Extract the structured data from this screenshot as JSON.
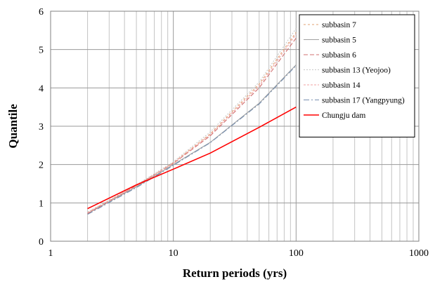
{
  "chart_data": {
    "type": "line",
    "xlabel": "Return periods (yrs)",
    "ylabel": "Quantile",
    "xscale": "log",
    "xlim": [
      1,
      1000
    ],
    "ylim": [
      0,
      6
    ],
    "x_ticks": [
      1,
      10,
      100,
      1000
    ],
    "x_tick_labels": [
      "1",
      "10",
      "100",
      "1000"
    ],
    "y_ticks": [
      0,
      1,
      2,
      3,
      4,
      5,
      6
    ],
    "y_tick_labels": [
      "0",
      "1",
      "2",
      "3",
      "4",
      "5",
      "6"
    ],
    "grid": true,
    "legend_position": "top-right",
    "series": [
      {
        "name": "subbasin 7",
        "color": "#e0a070",
        "dash": "3,3",
        "x": [
          2,
          5,
          10,
          20,
          50,
          100
        ],
        "y": [
          0.75,
          1.45,
          2.05,
          2.8,
          4.1,
          5.45
        ]
      },
      {
        "name": "subbasin 5",
        "color": "#a0a0a0",
        "dash": "",
        "x": [
          2,
          5,
          10,
          20,
          50,
          100
        ],
        "y": [
          0.72,
          1.42,
          2.0,
          2.58,
          3.6,
          4.6
        ]
      },
      {
        "name": "subbasin 6",
        "color": "#d07070",
        "dash": "6,3",
        "x": [
          2,
          5,
          10,
          20,
          50,
          100
        ],
        "y": [
          0.72,
          1.45,
          2.03,
          2.75,
          4.0,
          5.3
        ]
      },
      {
        "name": "subbasin 13 (Yeojoo)",
        "color": "#c8c8c8",
        "dash": "2,2",
        "x": [
          2,
          5,
          10,
          20,
          50,
          100
        ],
        "y": [
          0.76,
          1.47,
          2.07,
          2.85,
          4.15,
          5.55
        ]
      },
      {
        "name": "subbasin 14",
        "color": "#f0a0a0",
        "dash": "3,2",
        "x": [
          2,
          5,
          10,
          20,
          50,
          100
        ],
        "y": [
          0.74,
          1.44,
          2.04,
          2.78,
          4.05,
          5.4
        ]
      },
      {
        "name": "subbasin 17 (Yangpyung)",
        "color": "#7890b0",
        "dash": "8,3,2,3",
        "x": [
          2,
          5,
          10,
          20,
          50,
          100
        ],
        "y": [
          0.7,
          1.4,
          1.98,
          2.57,
          3.58,
          4.58
        ]
      },
      {
        "name": "Chungju dam",
        "color": "#ff0000",
        "dash": "",
        "x": [
          2,
          5,
          10,
          20,
          50,
          100
        ],
        "y": [
          0.85,
          1.47,
          1.88,
          2.3,
          2.97,
          3.5
        ]
      }
    ]
  }
}
